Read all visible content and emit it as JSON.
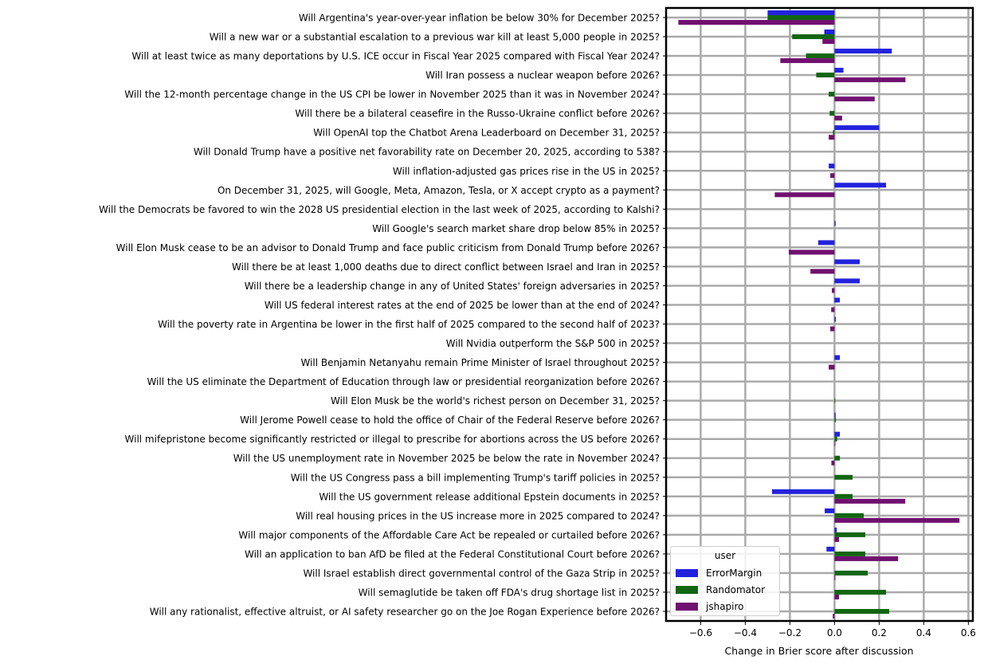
{
  "chart_data": {
    "type": "bar",
    "orientation": "horizontal",
    "title": "",
    "xlabel": "Change in Brier score after discussion",
    "ylabel": "",
    "xlim": [
      -0.755,
      0.62
    ],
    "xticks": [
      -0.6,
      -0.4,
      -0.2,
      0.0,
      0.2,
      0.4,
      0.6
    ],
    "xtick_labels": [
      "−0.6",
      "−0.4",
      "−0.2",
      "0.0",
      "0.2",
      "0.4",
      "0.6"
    ],
    "grid": true,
    "legend": {
      "title": "user",
      "position": "lower left"
    },
    "categories": [
      "Will Argentina's year-over-year inflation be below 30% for December 2025?",
      "Will a new war or a substantial escalation to a previous war kill at least 5,000 people in 2025?",
      "Will at least twice as many deportations by U.S. ICE occur in Fiscal Year 2025 compared with Fiscal Year 2024?",
      "Will Iran possess a nuclear weapon before 2026?",
      "Will the 12-month percentage change in the US CPI be lower in November 2025 than it was in November 2024?",
      "Will there be a bilateral ceasefire in the Russo-Ukraine conflict before 2026?",
      "Will OpenAI top the Chatbot Arena Leaderboard on December 31, 2025?",
      "Will Donald Trump have a positive net favorability rate on December 20, 2025, according to 538?",
      "Will inflation-adjusted gas prices rise in the US in 2025?",
      "On December 31, 2025, will Google, Meta, Amazon, Tesla, or X accept crypto as a payment?",
      "Will the Democrats be favored to win the 2028 US presidential election in the last week of 2025, according to Kalshi?",
      "Will Google's search market share drop below 85% in 2025?",
      "Will Elon Musk cease to be an advisor to Donald Trump and face public criticism from Donald Trump before 2026?",
      "Will there be at least 1,000 deaths due to direct conflict between Israel and Iran in 2025?",
      "Will there be a leadership change in any of United States' foreign adversaries in 2025?",
      "Will US federal interest rates at the end of 2025 be lower than at the end of 2024?",
      "Will the poverty rate in Argentina be lower in the first half of 2025 compared to the second half of 2023?",
      "Will Nvidia outperform the S&P 500 in 2025?",
      "Will Benjamin Netanyahu remain Prime Minister of Israel throughout 2025?",
      "Will the US eliminate the Department of Education through law or presidential reorganization before 2026?",
      "Will Elon Musk be the world's richest person on December 31, 2025?",
      "Will Jerome Powell cease to hold the office of Chair of the Federal Reserve before 2026?",
      "Will mifepristone become significantly restricted or illegal to prescribe for abortions across the US before 2026?",
      "Will the US unemployment rate in November 2025 be below the rate in November 2024?",
      "Will the US Congress pass a bill implementing Trump's tariff policies in 2025?",
      "Will the US government release additional Epstein documents in 2025?",
      "Will real housing prices in the US increase more in 2025 compared to 2024?",
      "Will major components of the Affordable Care Act be repealed or curtailed before 2026?",
      "Will an application to ban AfD be filed at the Federal Constitutional Court before 2026?",
      "Will Israel establish direct governmental control of the Gaza Strip in 2025?",
      "Will semaglutide be taken off FDA's drug shortage list in 2025?",
      "Will any rationalist, effective altruist, or AI safety researcher go on the Joe Rogan Experience before 2026?"
    ],
    "series": [
      {
        "name": "ErrorMargin",
        "color": "#2222dd",
        "values": [
          -0.3,
          -0.046,
          0.257,
          0.04,
          0,
          0,
          0.2,
          0,
          -0.026,
          0.231,
          0,
          0.005,
          -0.073,
          0.113,
          0.113,
          0.024,
          0.006,
          0,
          0.024,
          0,
          0,
          0.005,
          0.024,
          0,
          0,
          -0.28,
          -0.044,
          0.01,
          -0.036,
          0,
          0,
          0
        ]
      },
      {
        "name": "Randomator",
        "color": "#116611",
        "values": [
          -0.3,
          -0.19,
          -0.128,
          -0.082,
          -0.026,
          -0.022,
          -0.007,
          0,
          0,
          0,
          0,
          0,
          0,
          0,
          0,
          0,
          0,
          0,
          0,
          0,
          0.003,
          0.006,
          0.012,
          0.024,
          0.081,
          0.081,
          0.131,
          0.138,
          0.138,
          0.149,
          0.231,
          0.245
        ]
      },
      {
        "name": "jshapiro",
        "color": "#701070",
        "values": [
          -0.7,
          -0.054,
          -0.243,
          0.318,
          0.18,
          0.034,
          -0.026,
          0,
          -0.019,
          -0.268,
          0,
          0,
          -0.205,
          -0.108,
          -0.012,
          -0.015,
          -0.019,
          0,
          -0.026,
          0,
          0,
          0,
          0.003,
          -0.014,
          0,
          0.317,
          0.56,
          0.02,
          0.285,
          0.003,
          0.02,
          -0.008
        ]
      }
    ]
  }
}
